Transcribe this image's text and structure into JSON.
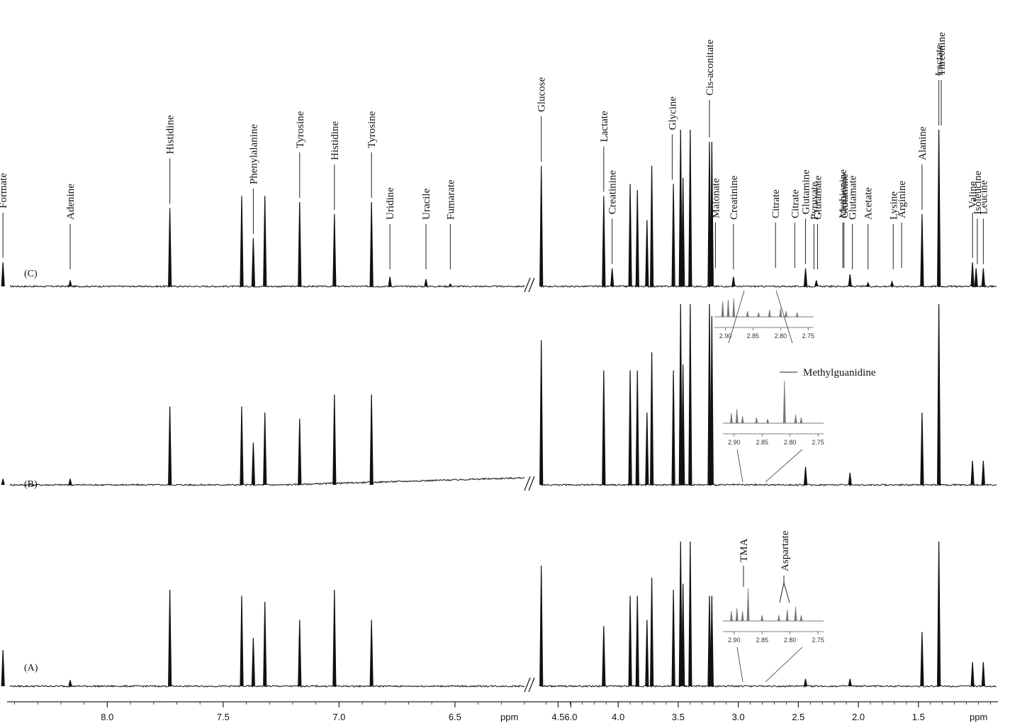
{
  "chart_data": {
    "type": "line",
    "title": "",
    "xlabel": "ppm",
    "x_direction": "decreasing",
    "axis_break": [
      4.6,
      6.2
    ],
    "x_segments": [
      {
        "range": [
          8.42,
          6.2
        ],
        "ticks": [
          8.0,
          7.5,
          7.0,
          6.5,
          6.0
        ]
      },
      {
        "range": [
          4.65,
          0.85
        ],
        "ticks": [
          4.5,
          4.0,
          3.5,
          3.0,
          2.5,
          2.0,
          1.5
        ]
      }
    ],
    "tick_labels": [
      "8.0",
      "7.5",
      "7.0",
      "6.5",
      "6.0",
      "4.5",
      "4.0",
      "3.5",
      "3.0",
      "2.5",
      "2.0",
      "1.5"
    ],
    "ylabel": "",
    "grid": false,
    "series": [
      {
        "name": "(C)",
        "peaks": [
          {
            "ppm": 8.45,
            "h": 0.2
          },
          {
            "ppm": 8.16,
            "h": 0.05
          },
          {
            "ppm": 7.73,
            "h": 0.65
          },
          {
            "ppm": 7.42,
            "h": 0.75
          },
          {
            "ppm": 7.37,
            "h": 0.4
          },
          {
            "ppm": 7.32,
            "h": 0.75
          },
          {
            "ppm": 7.17,
            "h": 0.7
          },
          {
            "ppm": 7.02,
            "h": 0.6
          },
          {
            "ppm": 6.86,
            "h": 0.7
          },
          {
            "ppm": 6.52,
            "h": 0.02
          },
          {
            "ppm": 5.9,
            "h": 0.08
          },
          {
            "ppm": 5.6,
            "h": 0.06
          },
          {
            "ppm": 4.64,
            "h": 1.0
          },
          {
            "ppm": 4.12,
            "h": 0.75
          },
          {
            "ppm": 4.05,
            "h": 0.15
          },
          {
            "ppm": 3.9,
            "h": 0.85
          },
          {
            "ppm": 3.84,
            "h": 0.8
          },
          {
            "ppm": 3.76,
            "h": 0.55
          },
          {
            "ppm": 3.72,
            "h": 1.0
          },
          {
            "ppm": 3.54,
            "h": 0.85
          },
          {
            "ppm": 3.48,
            "h": 1.3
          },
          {
            "ppm": 3.46,
            "h": 0.9
          },
          {
            "ppm": 3.4,
            "h": 1.3
          },
          {
            "ppm": 3.24,
            "h": 1.2
          },
          {
            "ppm": 3.22,
            "h": 1.2
          },
          {
            "ppm": 3.04,
            "h": 0.08
          },
          {
            "ppm": 2.44,
            "h": 0.15
          },
          {
            "ppm": 2.35,
            "h": 0.05
          },
          {
            "ppm": 2.07,
            "h": 0.1
          },
          {
            "ppm": 1.92,
            "h": 0.03
          },
          {
            "ppm": 1.72,
            "h": 0.04
          },
          {
            "ppm": 1.47,
            "h": 0.6
          },
          {
            "ppm": 1.33,
            "h": 1.3
          },
          {
            "ppm": 1.05,
            "h": 0.2
          },
          {
            "ppm": 1.02,
            "h": 0.15
          },
          {
            "ppm": 0.96,
            "h": 0.15
          }
        ]
      },
      {
        "name": "(B)",
        "peaks": [
          {
            "ppm": 8.45,
            "h": 0.05
          },
          {
            "ppm": 8.16,
            "h": 0.05
          },
          {
            "ppm": 7.73,
            "h": 0.65
          },
          {
            "ppm": 7.42,
            "h": 0.65
          },
          {
            "ppm": 7.37,
            "h": 0.35
          },
          {
            "ppm": 7.32,
            "h": 0.6
          },
          {
            "ppm": 7.17,
            "h": 0.55
          },
          {
            "ppm": 7.02,
            "h": 0.75
          },
          {
            "ppm": 6.86,
            "h": 0.75
          },
          {
            "ppm": 4.64,
            "h": 1.2
          },
          {
            "ppm": 4.12,
            "h": 0.95
          },
          {
            "ppm": 3.9,
            "h": 0.95
          },
          {
            "ppm": 3.84,
            "h": 0.95
          },
          {
            "ppm": 3.76,
            "h": 0.6
          },
          {
            "ppm": 3.72,
            "h": 1.1
          },
          {
            "ppm": 3.54,
            "h": 0.95
          },
          {
            "ppm": 3.48,
            "h": 1.5
          },
          {
            "ppm": 3.46,
            "h": 1.0
          },
          {
            "ppm": 3.4,
            "h": 1.5
          },
          {
            "ppm": 3.24,
            "h": 1.5
          },
          {
            "ppm": 3.22,
            "h": 1.4
          },
          {
            "ppm": 2.44,
            "h": 0.15
          },
          {
            "ppm": 2.07,
            "h": 0.1
          },
          {
            "ppm": 1.47,
            "h": 0.6
          },
          {
            "ppm": 1.33,
            "h": 1.5
          },
          {
            "ppm": 1.05,
            "h": 0.2
          },
          {
            "ppm": 0.96,
            "h": 0.2
          }
        ]
      },
      {
        "name": "(A)",
        "peaks": [
          {
            "ppm": 8.45,
            "h": 0.3
          },
          {
            "ppm": 8.16,
            "h": 0.05
          },
          {
            "ppm": 7.73,
            "h": 0.8
          },
          {
            "ppm": 7.42,
            "h": 0.75
          },
          {
            "ppm": 7.37,
            "h": 0.4
          },
          {
            "ppm": 7.32,
            "h": 0.7
          },
          {
            "ppm": 7.17,
            "h": 0.55
          },
          {
            "ppm": 7.02,
            "h": 0.8
          },
          {
            "ppm": 6.86,
            "h": 0.55
          },
          {
            "ppm": 4.64,
            "h": 1.0
          },
          {
            "ppm": 4.12,
            "h": 0.5
          },
          {
            "ppm": 3.9,
            "h": 0.75
          },
          {
            "ppm": 3.84,
            "h": 0.75
          },
          {
            "ppm": 3.76,
            "h": 0.55
          },
          {
            "ppm": 3.72,
            "h": 0.9
          },
          {
            "ppm": 3.54,
            "h": 0.8
          },
          {
            "ppm": 3.48,
            "h": 1.2
          },
          {
            "ppm": 3.46,
            "h": 0.85
          },
          {
            "ppm": 3.4,
            "h": 1.2
          },
          {
            "ppm": 3.24,
            "h": 0.75
          },
          {
            "ppm": 3.22,
            "h": 0.75
          },
          {
            "ppm": 2.44,
            "h": 0.06
          },
          {
            "ppm": 2.07,
            "h": 0.06
          },
          {
            "ppm": 1.47,
            "h": 0.45
          },
          {
            "ppm": 1.33,
            "h": 1.2
          },
          {
            "ppm": 1.05,
            "h": 0.2
          },
          {
            "ppm": 0.96,
            "h": 0.2
          }
        ]
      }
    ],
    "annotations": [
      {
        "text": "Formate",
        "ppm": 8.45
      },
      {
        "text": "Adenine",
        "ppm": 8.16
      },
      {
        "text": "Histidine",
        "ppm": 7.73
      },
      {
        "text": "Phenylalanine",
        "ppm": 7.37
      },
      {
        "text": "Tyrosine",
        "ppm": 7.17
      },
      {
        "text": "Histidine",
        "ppm": 7.02
      },
      {
        "text": "Tyrosine",
        "ppm": 6.86
      },
      {
        "text": "Fumarate",
        "ppm": 6.52
      },
      {
        "text": "Uridine",
        "ppm": 5.9
      },
      {
        "text": "Uracile",
        "ppm": 5.6
      },
      {
        "text": "Glucose",
        "ppm": 4.64
      },
      {
        "text": "Lactate",
        "ppm": 4.12
      },
      {
        "text": "Creatinine",
        "ppm": 4.05
      },
      {
        "text": "Glycine",
        "ppm": 3.55
      },
      {
        "text": "Cis-aconitate",
        "ppm": 3.24
      },
      {
        "text": "Malonate",
        "ppm": 3.19
      },
      {
        "text": "Creatinine",
        "ppm": 3.04
      },
      {
        "text": "Citrate",
        "ppm": 2.69
      },
      {
        "text": "Citrate",
        "ppm": 2.53
      },
      {
        "text": "Glutamine",
        "ppm": 2.44
      },
      {
        "text": "Pyruvate",
        "ppm": 2.37
      },
      {
        "text": "Glutamate",
        "ppm": 2.34
      },
      {
        "text": "Glutamine",
        "ppm": 2.12
      },
      {
        "text": "Methionine",
        "ppm": 2.13
      },
      {
        "text": "Glutamate",
        "ppm": 2.05
      },
      {
        "text": "Acetate",
        "ppm": 1.92
      },
      {
        "text": "Lysine",
        "ppm": 1.71
      },
      {
        "text": "Arginine",
        "ppm": 1.64
      },
      {
        "text": "Alanine",
        "ppm": 1.47
      },
      {
        "text": "Lactate",
        "ppm": 1.33
      },
      {
        "text": "Threonine",
        "ppm": 1.31
      },
      {
        "text": "Valine",
        "ppm": 1.05
      },
      {
        "text": "Isoleucine",
        "ppm": 1.01
      },
      {
        "text": "Leucine",
        "ppm": 0.96
      }
    ],
    "inset_annotations": [
      {
        "text": "Methylguanidine",
        "ppm": 2.81
      },
      {
        "text": "TMA",
        "ppm": 2.89
      },
      {
        "text": "Aspartate",
        "ppm": 2.8
      }
    ],
    "insets": [
      {
        "trace": "(C)",
        "range": [
          2.92,
          2.74
        ],
        "ticks": [
          "2.90",
          "2.85",
          "2.80",
          "2.75"
        ]
      },
      {
        "trace": "(B)",
        "range": [
          2.92,
          2.74
        ],
        "ticks": [
          "2.90",
          "2.85",
          "2.80",
          "2.75"
        ]
      },
      {
        "trace": "(A)",
        "range": [
          2.92,
          2.74
        ],
        "ticks": [
          "2.90",
          "2.85",
          "2.80",
          "2.75"
        ]
      }
    ],
    "colors": {
      "main_trace": "#111111",
      "inset_trace": "#777777"
    }
  }
}
